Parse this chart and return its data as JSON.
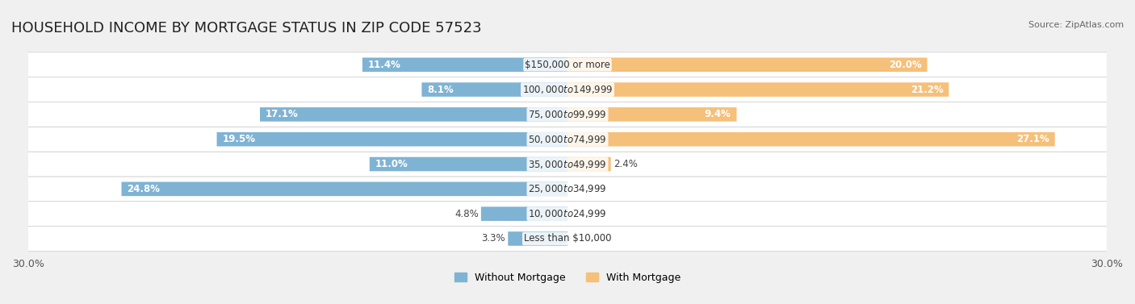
{
  "title": "HOUSEHOLD INCOME BY MORTGAGE STATUS IN ZIP CODE 57523",
  "source": "Source: ZipAtlas.com",
  "categories": [
    "Less than $10,000",
    "$10,000 to $24,999",
    "$25,000 to $34,999",
    "$35,000 to $49,999",
    "$50,000 to $74,999",
    "$75,000 to $99,999",
    "$100,000 to $149,999",
    "$150,000 or more"
  ],
  "without_mortgage": [
    3.3,
    4.8,
    24.8,
    11.0,
    19.5,
    17.1,
    8.1,
    11.4
  ],
  "with_mortgage": [
    0.0,
    0.0,
    0.0,
    2.4,
    27.1,
    9.4,
    21.2,
    20.0
  ],
  "color_without": "#7fb3d3",
  "color_with": "#f5c07a",
  "bg_color": "#f0f0f0",
  "bar_bg_color": "#e8e8e8",
  "xlim": 30.0,
  "legend_labels": [
    "Without Mortgage",
    "With Mortgage"
  ],
  "title_fontsize": 13,
  "axis_label_fontsize": 9,
  "bar_label_fontsize": 8.5,
  "category_fontsize": 8.5
}
